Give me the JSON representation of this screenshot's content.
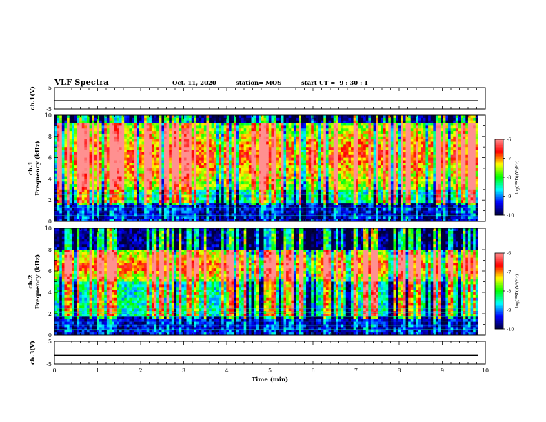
{
  "header": {
    "title": "VLF Spectra",
    "date": "Oct. 11, 2020",
    "station": "station= MOS",
    "start_ut": "start UT =  9 : 30 : 1"
  },
  "chart_data": [
    {
      "type": "line",
      "name": "ch1_waveform",
      "ylabel": "ch.1(V)",
      "ylim": [
        -5,
        5
      ],
      "yticks": [
        "5",
        "-5"
      ],
      "x": [
        0,
        9.83
      ],
      "values": [
        -1.2,
        -1.2
      ],
      "grid": false
    },
    {
      "type": "heatmap",
      "name": "ch1_spectrogram",
      "ylabel": "ch.1\nFrequency (kHz)",
      "ylim": [
        0,
        10
      ],
      "yticks": [
        "0",
        "2",
        "4",
        "6",
        "8",
        "10"
      ],
      "xlim": [
        0,
        10
      ],
      "data_extent_min": 9.83,
      "dominant_band_khz": [
        3,
        9.3
      ],
      "colorbar": {
        "label": "log(PSD)(V²/Hz)",
        "range": [
          -10,
          -6
        ],
        "ticks": [
          "-6",
          "-7",
          "-8",
          "-9",
          "-10"
        ]
      }
    },
    {
      "type": "heatmap",
      "name": "ch2_spectrogram",
      "ylabel": "ch.2\nFrequency (kHz)",
      "ylim": [
        0,
        10
      ],
      "yticks": [
        "0",
        "2",
        "4",
        "6",
        "8",
        "10"
      ],
      "xlim": [
        0,
        10
      ],
      "data_extent_min": 9.83,
      "dominant_band_khz": [
        5,
        8
      ],
      "colorbar": {
        "label": "log(PSD)(V²/Hz)",
        "range": [
          -10,
          -6
        ],
        "ticks": [
          "-6",
          "-7",
          "-8",
          "-9",
          "-10"
        ]
      }
    },
    {
      "type": "line",
      "name": "ch3_waveform",
      "ylabel": "ch.3(V)",
      "ylim": [
        -5,
        5
      ],
      "yticks": [
        "5",
        "-5"
      ],
      "x": [
        0,
        9.83
      ],
      "values": [
        -1.2,
        -1.2
      ],
      "grid": false
    }
  ],
  "x_axis": {
    "label": "Time (min)",
    "range": [
      0,
      10
    ],
    "ticks": [
      "0",
      "1",
      "2",
      "3",
      "4",
      "5",
      "6",
      "7",
      "8",
      "9",
      "10"
    ]
  },
  "colors": {
    "colormap": [
      "#00003c",
      "#0000ff",
      "#00ffff",
      "#00ff00",
      "#ffff00",
      "#ff0000",
      "#ff9090"
    ],
    "background": "#ffffff",
    "axes": "#000000"
  }
}
